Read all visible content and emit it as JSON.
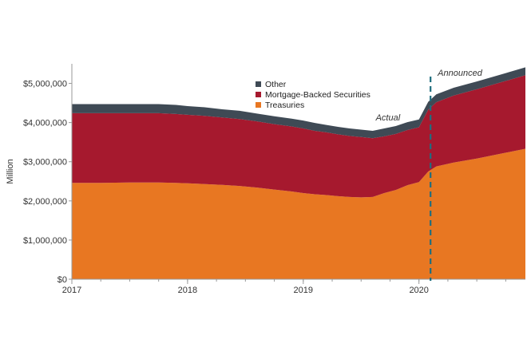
{
  "chart_data": {
    "type": "area",
    "stacked": true,
    "ylabel": "Million",
    "ylim": [
      0,
      5500000
    ],
    "xlim": [
      2017.0,
      2020.92
    ],
    "yticks": [
      0,
      1000000,
      2000000,
      3000000,
      4000000,
      5000000
    ],
    "ytick_labels": [
      "$0",
      "$1,000,000",
      "$2,000,000",
      "$3,000,000",
      "$4,000,000",
      "$5,000,000"
    ],
    "xticks": [
      2017,
      2018,
      2019,
      2020
    ],
    "xtick_labels": [
      "2017",
      "2018",
      "2019",
      "2020"
    ],
    "legend": [
      "Other",
      "Mortgage-Backed Securities",
      "Treasuries"
    ],
    "legend_placement": "top-center",
    "grid": false,
    "colors": {
      "Treasuries": "#E87722",
      "Mortgage-Backed Securities": "#A6192E",
      "Other": "#3F4A55",
      "divider": "#1F6E7F"
    },
    "x": [
      2017.0,
      2017.25,
      2017.5,
      2017.75,
      2017.9,
      2018.0,
      2018.15,
      2018.3,
      2018.45,
      2018.6,
      2018.75,
      2018.9,
      2019.0,
      2019.1,
      2019.2,
      2019.3,
      2019.4,
      2019.5,
      2019.6,
      2019.7,
      2019.8,
      2019.9,
      2020.0,
      2020.08,
      2020.15,
      2020.3,
      2020.5,
      2020.7,
      2020.92
    ],
    "series": [
      {
        "name": "Treasuries",
        "values": [
          2460000,
          2460000,
          2470000,
          2470000,
          2460000,
          2450000,
          2430000,
          2410000,
          2380000,
          2340000,
          2290000,
          2240000,
          2200000,
          2170000,
          2150000,
          2120000,
          2100000,
          2090000,
          2100000,
          2200000,
          2280000,
          2400000,
          2480000,
          2750000,
          2880000,
          2980000,
          3080000,
          3200000,
          3330000
        ]
      },
      {
        "name": "Mortgage-Backed Securities",
        "values": [
          1780000,
          1780000,
          1770000,
          1770000,
          1760000,
          1750000,
          1740000,
          1720000,
          1710000,
          1690000,
          1670000,
          1660000,
          1650000,
          1620000,
          1600000,
          1580000,
          1560000,
          1540000,
          1500000,
          1450000,
          1430000,
          1410000,
          1400000,
          1580000,
          1640000,
          1710000,
          1770000,
          1820000,
          1880000
        ]
      },
      {
        "name": "Other",
        "values": [
          230000,
          230000,
          230000,
          230000,
          230000,
          220000,
          220000,
          210000,
          210000,
          200000,
          200000,
          200000,
          200000,
          200000,
          190000,
          190000,
          190000,
          190000,
          190000,
          200000,
          200000,
          200000,
          200000,
          200000,
          200000,
          200000,
          200000,
          200000,
          200000
        ]
      }
    ],
    "divider_x": 2020.1,
    "annotations": [
      "Actual",
      "Announced"
    ]
  }
}
